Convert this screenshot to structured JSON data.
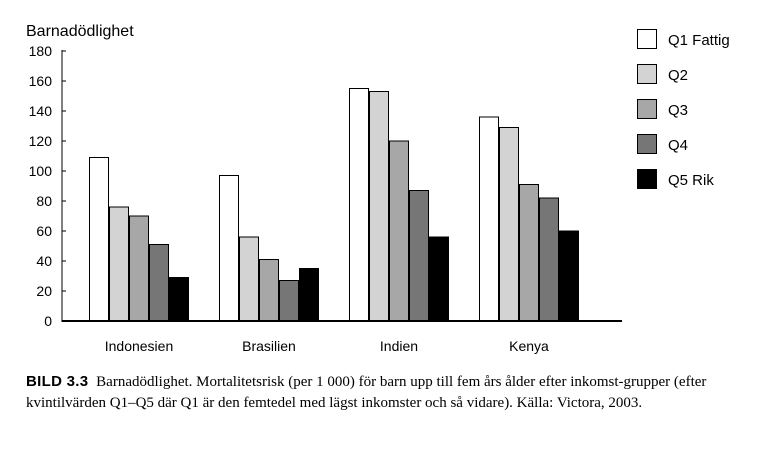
{
  "chart_data": {
    "type": "bar",
    "ylabel": "Barnadödlighet",
    "ylim": [
      0,
      180
    ],
    "yticks": [
      "0",
      "20",
      "40",
      "60",
      "80",
      "100",
      "120",
      "140",
      "160",
      "180"
    ],
    "grid": false,
    "legend_position": "top-right",
    "categories": [
      "Indonesien",
      "Brasilien",
      "Indien",
      "Kenya"
    ],
    "series": [
      {
        "name": "Q1 Fattig",
        "color": "#ffffff",
        "values": [
          109,
          97,
          155,
          136
        ]
      },
      {
        "name": "Q2",
        "color": "#d3d3d3",
        "values": [
          76,
          56,
          153,
          129
        ]
      },
      {
        "name": "Q3",
        "color": "#a7a7a7",
        "values": [
          70,
          41,
          120,
          91
        ]
      },
      {
        "name": "Q4",
        "color": "#767676",
        "values": [
          51,
          27,
          87,
          82
        ]
      },
      {
        "name": "Q5 Rik",
        "color": "#000000",
        "values": [
          29,
          35,
          56,
          60
        ]
      }
    ]
  },
  "caption": {
    "lead": "BILD 3.3",
    "text": "Barnadödlighet. Mortalitetsrisk (per 1 000) för barn upp till fem års ålder efter inkomst-grupper (efter kvintilvärden Q1–Q5 där Q1 är den femtedel med lägst inkomster och så vidare). Källa: Victora, 2003."
  }
}
